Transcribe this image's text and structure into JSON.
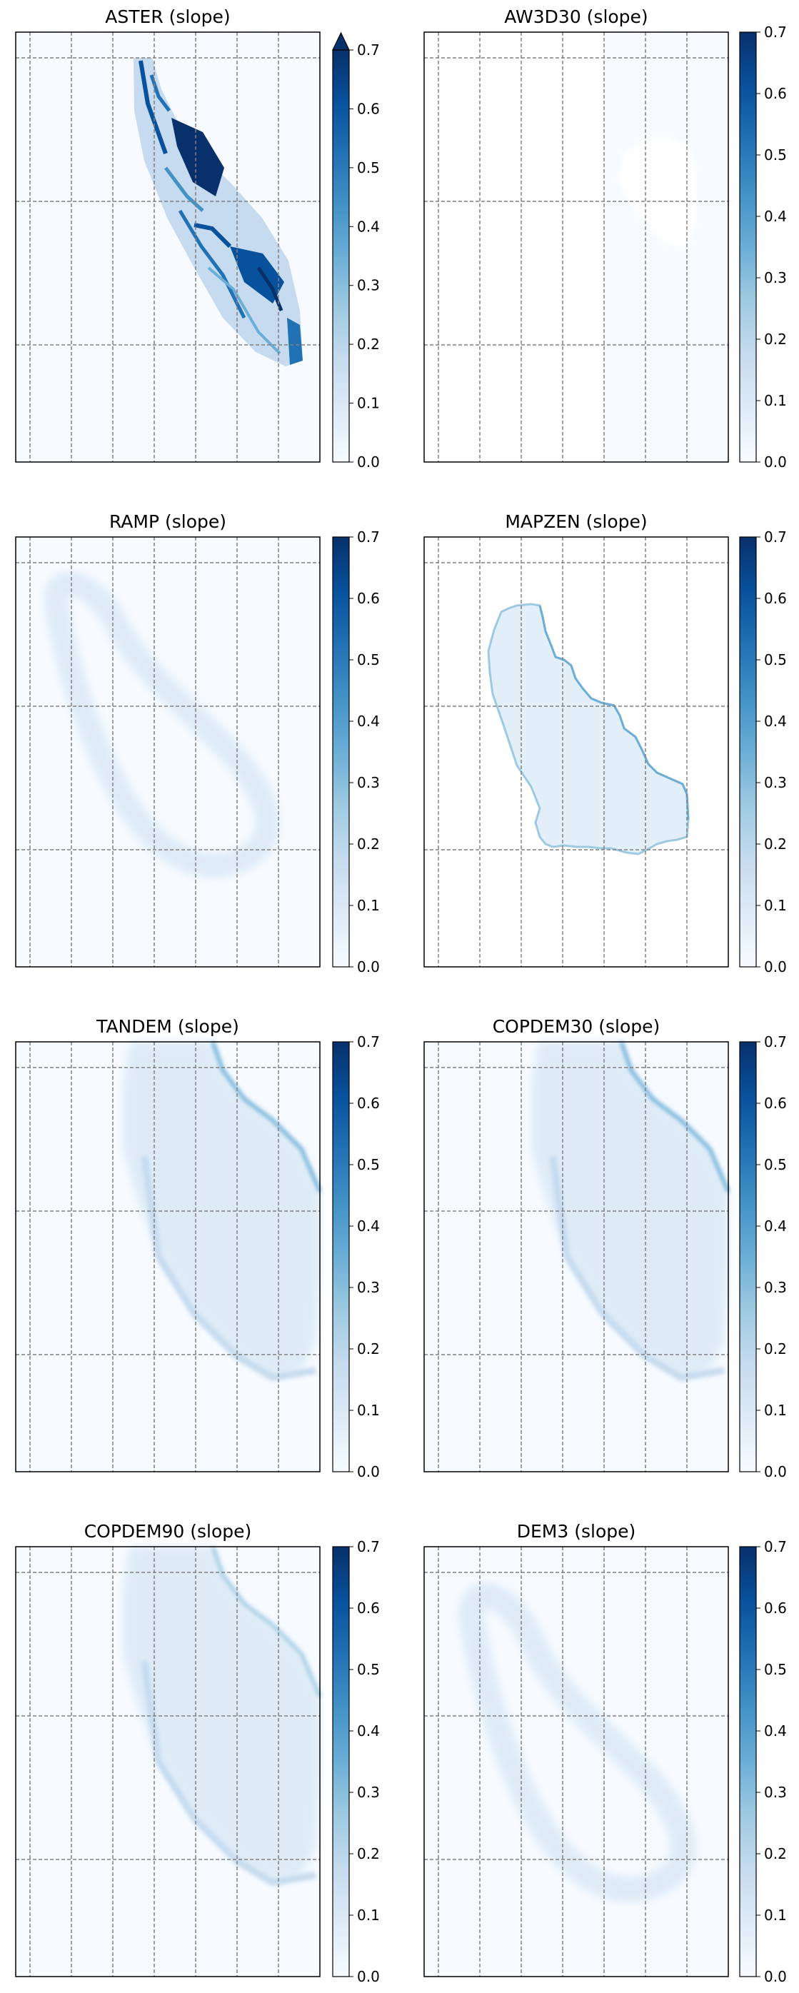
{
  "chart_data": [
    {
      "type": "heatmap",
      "title": "ASTER (slope)",
      "colormap": "Blues",
      "clim": [
        0,
        0.7
      ],
      "colorbar_extend": "max",
      "colorbar_ticks": [
        "0.0",
        "0.1",
        "0.2",
        "0.3",
        "0.4",
        "0.5",
        "0.6",
        "0.7"
      ],
      "grid": true,
      "grid_style": "dashed",
      "content": "high slope values up to and above 0.7 inside a narrow outline tilted to the lower right",
      "max_value": 0.7
    },
    {
      "type": "heatmap",
      "title": "AW3D30 (slope)",
      "colormap": "Blues",
      "clim": [
        0,
        0.7
      ],
      "colorbar_extend": "neither",
      "colorbar_ticks": [
        "0.0",
        "0.1",
        "0.2",
        "0.3",
        "0.4",
        "0.5",
        "0.6",
        "0.7"
      ],
      "grid": true,
      "grid_style": "dashed",
      "content": "almost no data; faint uniform tile, white outline of the feature",
      "max_value": 0.0
    },
    {
      "type": "heatmap",
      "title": "RAMP (slope)",
      "colormap": "Blues",
      "clim": [
        0,
        0.7
      ],
      "colorbar_extend": "neither",
      "colorbar_ticks": [
        "0.0",
        "0.1",
        "0.2",
        "0.3",
        "0.4",
        "0.5",
        "0.6",
        "0.7"
      ],
      "grid": true,
      "grid_style": "dashed",
      "content": "smooth low slopes around a tilted oval",
      "max_value": 0.12
    },
    {
      "type": "heatmap",
      "title": "MAPZEN (slope)",
      "colormap": "Blues",
      "clim": [
        0,
        0.7
      ],
      "colorbar_extend": "neither",
      "colorbar_ticks": [
        "0.0",
        "0.1",
        "0.2",
        "0.3",
        "0.4",
        "0.5",
        "0.6",
        "0.7"
      ],
      "grid": true,
      "grid_style": "dashed",
      "content": "blocky outline with low interior and slightly higher edges",
      "max_value": 0.3
    },
    {
      "type": "heatmap",
      "title": "TANDEM (slope)",
      "colormap": "Blues",
      "clim": [
        0,
        0.7
      ],
      "colorbar_extend": "neither",
      "colorbar_ticks": [
        "0.0",
        "0.1",
        "0.2",
        "0.3",
        "0.4",
        "0.5",
        "0.6",
        "0.7"
      ],
      "grid": true,
      "grid_style": "dashed",
      "content": "large tilted region with low slopes and moderate edge",
      "max_value": 0.35
    },
    {
      "type": "heatmap",
      "title": "COPDEM30 (slope)",
      "colormap": "Blues",
      "clim": [
        0,
        0.7
      ],
      "colorbar_extend": "neither",
      "colorbar_ticks": [
        "0.0",
        "0.1",
        "0.2",
        "0.3",
        "0.4",
        "0.5",
        "0.6",
        "0.7"
      ],
      "grid": true,
      "grid_style": "dashed",
      "content": "large tilted region with low slopes and moderate edge",
      "max_value": 0.35
    },
    {
      "type": "heatmap",
      "title": "COPDEM90 (slope)",
      "colormap": "Blues",
      "clim": [
        0,
        0.7
      ],
      "colorbar_extend": "neither",
      "colorbar_ticks": [
        "0.0",
        "0.1",
        "0.2",
        "0.3",
        "0.4",
        "0.5",
        "0.6",
        "0.7"
      ],
      "grid": true,
      "grid_style": "dashed",
      "content": "large tilted region with low slopes and moderate edge",
      "max_value": 0.3
    },
    {
      "type": "heatmap",
      "title": "DEM3 (slope)",
      "colormap": "Blues",
      "clim": [
        0,
        0.7
      ],
      "colorbar_extend": "neither",
      "colorbar_ticks": [
        "0.0",
        "0.1",
        "0.2",
        "0.3",
        "0.4",
        "0.5",
        "0.6",
        "0.7"
      ],
      "grid": true,
      "grid_style": "dashed",
      "content": "smooth low slopes around a tilted oval",
      "max_value": 0.12
    }
  ],
  "colors": {
    "cmap_low": "#f7fbff",
    "cmap_high": "#08306b",
    "grid": "#808080",
    "frame": "#000000"
  }
}
